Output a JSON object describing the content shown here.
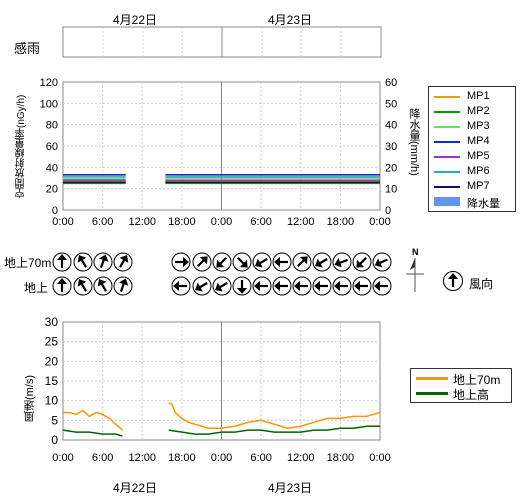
{
  "dates": {
    "day1": "4月22日",
    "day2": "4月23日"
  },
  "rain_sense_label": "感雨",
  "top_chart": {
    "ylabel_left": "空間放射線量率(nGy/h)",
    "ylabel_right": "降水量(mm/h)",
    "left_ticks": [
      "120",
      "100",
      "80",
      "60",
      "40",
      "20",
      "0"
    ],
    "right_ticks": [
      "60",
      "50",
      "40",
      "30",
      "20",
      "10",
      "0"
    ],
    "x_ticks": [
      "0:00",
      "6:00",
      "12:00",
      "18:00",
      "0:00",
      "6:00",
      "12:00",
      "18:00",
      "0:00"
    ],
    "legend": [
      "MP1",
      "MP2",
      "MP3",
      "MP4",
      "MP5",
      "MP6",
      "MP7",
      "降水量"
    ]
  },
  "wind_dir": {
    "label_70m": "地上70m",
    "label_ground": "地上",
    "legend_label": "風向",
    "compass_n": "N"
  },
  "bottom_chart": {
    "ylabel": "風速(m/s)",
    "y_ticks": [
      "30",
      "25",
      "20",
      "15",
      "10",
      "5",
      "0"
    ],
    "x_ticks": [
      "0:00",
      "6:00",
      "12:00",
      "18:00",
      "0:00",
      "6:00",
      "12:00",
      "18:00",
      "0:00"
    ],
    "legend": [
      "地上70m",
      "地上高"
    ]
  },
  "colors": {
    "MP1": "#f39800",
    "MP2": "#00a000",
    "MP3": "#66dd66",
    "MP4": "#1030c0",
    "MP5": "#9933cc",
    "MP6": "#20b2aa",
    "MP7": "#101060",
    "rain": "#6495ed",
    "wind70": "#f39800",
    "windGround": "#006400"
  },
  "chart_data": [
    {
      "type": "line",
      "x_unit": "hours since 4月22日 0:00",
      "xlim": [
        0,
        48
      ],
      "ylim": [
        0,
        120
      ],
      "y2lim": [
        0,
        60
      ],
      "series": [
        {
          "name": "MP1",
          "segments": [
            {
              "x": [
                0,
                9.5
              ],
              "y": [
                27,
                27
              ]
            },
            {
              "x": [
                15.5,
                48
              ],
              "y": [
                27,
                27
              ]
            }
          ]
        },
        {
          "name": "MP2",
          "segments": [
            {
              "x": [
                0,
                9.5
              ],
              "y": [
                25,
                25
              ]
            },
            {
              "x": [
                15.5,
                48
              ],
              "y": [
                25,
                25
              ]
            }
          ]
        },
        {
          "name": "MP3",
          "segments": [
            {
              "x": [
                0,
                9.5
              ],
              "y": [
                29,
                29
              ]
            },
            {
              "x": [
                15.5,
                48
              ],
              "y": [
                30,
                30
              ]
            }
          ]
        },
        {
          "name": "MP4",
          "segments": [
            {
              "x": [
                0,
                9.5
              ],
              "y": [
                33,
                33
              ]
            },
            {
              "x": [
                15.5,
                48
              ],
              "y": [
                33,
                33
              ]
            }
          ]
        },
        {
          "name": "MP5",
          "segments": [
            {
              "x": [
                0,
                9.5
              ],
              "y": [
                28,
                28
              ]
            },
            {
              "x": [
                15.5,
                48
              ],
              "y": [
                28,
                28
              ]
            }
          ]
        },
        {
          "name": "MP6",
          "segments": [
            {
              "x": [
                0,
                9.5
              ],
              "y": [
                31,
                31
              ]
            },
            {
              "x": [
                15.5,
                48
              ],
              "y": [
                31,
                31
              ]
            }
          ]
        },
        {
          "name": "MP7",
          "segments": [
            {
              "x": [
                0,
                9.5
              ],
              "y": [
                26,
                26
              ]
            },
            {
              "x": [
                15.5,
                48
              ],
              "y": [
                26,
                26
              ]
            }
          ]
        }
      ]
    },
    {
      "type": "line",
      "x_unit": "hours since 4月22日 0:00",
      "xlim": [
        0,
        48
      ],
      "ylim": [
        0,
        30
      ],
      "series": [
        {
          "name": "地上70m",
          "segments": [
            {
              "x": [
                0,
                1,
                2,
                3,
                4,
                5,
                6,
                7,
                8,
                9
              ],
              "y": [
                7,
                7,
                6.5,
                7.5,
                6,
                7,
                6.5,
                5.5,
                4,
                2.5
              ]
            },
            {
              "x": [
                16,
                16.5,
                17,
                18,
                19,
                20,
                21,
                22,
                24,
                26,
                28,
                30,
                32,
                34,
                36,
                38,
                40,
                42,
                44,
                46,
                47,
                48
              ],
              "y": [
                9.5,
                9,
                7,
                5.5,
                4.5,
                4,
                3.5,
                3,
                3,
                3.5,
                4.5,
                5,
                4,
                3,
                3.5,
                4.5,
                5.5,
                5.5,
                6,
                6,
                6.5,
                7
              ]
            }
          ]
        },
        {
          "name": "地上高",
          "segments": [
            {
              "x": [
                0,
                2,
                4,
                6,
                8,
                9
              ],
              "y": [
                2.5,
                2,
                2,
                1.5,
                1.5,
                1
              ]
            },
            {
              "x": [
                16,
                18,
                20,
                22,
                24,
                26,
                28,
                30,
                32,
                34,
                36,
                38,
                40,
                42,
                44,
                46,
                48
              ],
              "y": [
                2.5,
                2,
                1.5,
                1.5,
                2,
                2,
                2.5,
                2.5,
                2,
                2,
                2,
                2.5,
                2.5,
                3,
                3,
                3.5,
                3.5
              ]
            }
          ]
        }
      ]
    }
  ],
  "arrows": {
    "row70_day1": [
      0,
      330,
      20,
      30
    ],
    "row70_day2": [
      90,
      45,
      225,
      135,
      240,
      270,
      45,
      240,
      250,
      225,
      245,
      315
    ],
    "rowG_day1": [
      0,
      330,
      330,
      20
    ],
    "rowG_day2": [
      270,
      240,
      240,
      180,
      270,
      270,
      270,
      270,
      270,
      270,
      270,
      270
    ]
  }
}
